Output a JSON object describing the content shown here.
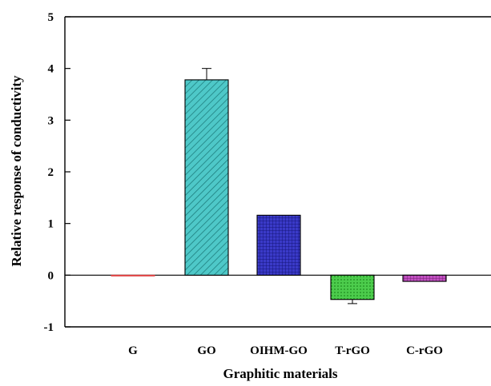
{
  "chart_data": {
    "type": "bar",
    "title": "",
    "xlabel": "Graphitic materials",
    "ylabel": "Relative response of conductivity",
    "ylim": [
      -1,
      5
    ],
    "yticks": [
      -1,
      0,
      1,
      2,
      3,
      4,
      5
    ],
    "categories": [
      "G",
      "GO",
      "OIHM-GO",
      "T-rGO",
      "C-rGO"
    ],
    "values": [
      0.0,
      3.78,
      1.16,
      -0.47,
      -0.12
    ],
    "errors": [
      0.0,
      0.22,
      0.01,
      0.08,
      0.01
    ],
    "colors": [
      "#e04040",
      "#4ec8c8",
      "#2a2ab0",
      "#3cc03c",
      "#b040b0"
    ],
    "patterns": [
      "solid",
      "diagonal-hatch",
      "crosshatch",
      "dots",
      "crosshatch"
    ],
    "grid": false,
    "legend": "none"
  }
}
